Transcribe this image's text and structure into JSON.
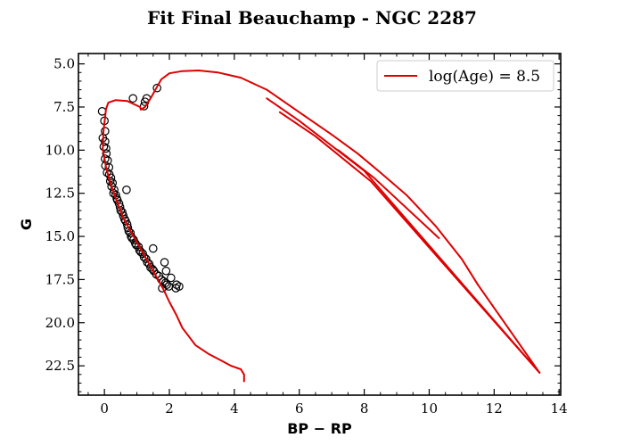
{
  "chart_data": {
    "type": "scatter",
    "title": "Fit Final Beauchamp - NGC 2287",
    "xlabel": "BP − RP",
    "ylabel": "G",
    "xlim": [
      -0.8,
      14.05
    ],
    "ylim": [
      24.2,
      4.4
    ],
    "y_inverted": true,
    "grid": false,
    "legend_position": "top-right",
    "xticks": [
      0,
      2,
      4,
      6,
      8,
      10,
      12,
      14
    ],
    "xtick_labels": [
      "0",
      "2",
      "4",
      "6",
      "8",
      "10",
      "12",
      "14"
    ],
    "yticks": [
      5.0,
      7.5,
      10.0,
      12.5,
      15.0,
      17.5,
      20.0,
      22.5
    ],
    "ytick_labels": [
      "5.0",
      "7.5",
      "10.0",
      "12.5",
      "15.0",
      "17.5",
      "20.0",
      "22.5"
    ],
    "series": [
      {
        "name": "",
        "kind": "scatter",
        "marker": "open-circle",
        "color": "#000000",
        "x": [
          -0.07,
          0.0,
          0.02,
          0.88,
          1.25,
          1.3,
          1.22,
          1.62,
          -0.05,
          0.02,
          -0.02,
          0.05,
          0.06,
          0.02,
          0.1,
          0.03,
          0.14,
          0.08,
          0.15,
          0.2,
          0.18,
          0.25,
          0.22,
          0.3,
          0.28,
          0.35,
          0.38,
          0.4,
          0.45,
          0.48,
          0.5,
          0.55,
          0.58,
          0.62,
          0.65,
          0.7,
          0.72,
          0.75,
          0.8,
          0.82,
          0.85,
          0.9,
          0.95,
          0.98,
          1.05,
          1.08,
          1.12,
          1.18,
          1.22,
          1.28,
          1.32,
          1.38,
          1.42,
          1.48,
          1.52,
          1.6,
          1.68,
          1.75,
          1.82,
          1.88,
          1.92,
          1.98,
          1.85,
          1.9,
          2.05,
          2.22,
          2.3,
          2.2,
          1.78,
          0.68,
          1.5
        ],
        "y": [
          7.75,
          8.3,
          8.9,
          7.0,
          7.2,
          7.0,
          7.45,
          6.4,
          9.3,
          9.5,
          9.8,
          9.9,
          10.2,
          10.5,
          10.6,
          10.9,
          11.0,
          11.3,
          11.4,
          11.6,
          11.8,
          11.9,
          12.1,
          12.3,
          12.5,
          12.6,
          12.8,
          12.9,
          13.1,
          13.3,
          13.5,
          13.6,
          13.8,
          14.0,
          14.1,
          14.3,
          14.5,
          14.7,
          14.8,
          15.0,
          15.1,
          15.2,
          15.4,
          15.5,
          15.6,
          15.8,
          15.9,
          16.0,
          16.2,
          16.3,
          16.5,
          16.6,
          16.8,
          16.9,
          17.0,
          17.2,
          17.3,
          17.5,
          17.6,
          17.7,
          17.8,
          17.9,
          16.5,
          17.0,
          17.4,
          17.8,
          17.9,
          18.0,
          18.0,
          12.3,
          15.7
        ]
      },
      {
        "name": "log(Age) = 8.5",
        "kind": "line",
        "color": "#dd0000",
        "segments": [
          [
            [
              4.3,
              23.4
            ],
            [
              4.3,
              23.0
            ],
            [
              4.2,
              22.7
            ],
            [
              3.9,
              22.5
            ],
            [
              3.6,
              22.2
            ],
            [
              3.2,
              21.8
            ],
            [
              2.8,
              21.3
            ],
            [
              2.6,
              20.8
            ],
            [
              2.4,
              20.3
            ],
            [
              2.2,
              19.5
            ],
            [
              2.0,
              18.8
            ],
            [
              1.8,
              18.0
            ],
            [
              1.5,
              17.0
            ],
            [
              1.2,
              16.0
            ],
            [
              0.9,
              15.0
            ],
            [
              0.6,
              14.0
            ],
            [
              0.35,
              12.8
            ],
            [
              0.18,
              11.9
            ],
            [
              0.05,
              11.0
            ],
            [
              -0.05,
              9.9
            ],
            [
              -0.03,
              8.9
            ],
            [
              0.05,
              7.6
            ],
            [
              0.12,
              7.25
            ],
            [
              0.35,
              7.1
            ],
            [
              0.7,
              7.15
            ],
            [
              1.1,
              7.5
            ],
            [
              1.12,
              7.65
            ],
            [
              1.25,
              7.5
            ],
            [
              1.45,
              6.9
            ],
            [
              1.6,
              6.4
            ],
            [
              1.75,
              5.9
            ],
            [
              2.0,
              5.55
            ],
            [
              2.4,
              5.42
            ],
            [
              2.9,
              5.38
            ],
            [
              3.5,
              5.5
            ],
            [
              4.2,
              5.8
            ],
            [
              5.0,
              6.5
            ],
            [
              6.0,
              7.8
            ],
            [
              7.0,
              9.1
            ],
            [
              7.8,
              10.2
            ],
            [
              8.5,
              11.3
            ],
            [
              9.3,
              12.6
            ],
            [
              10.2,
              14.4
            ],
            [
              11.0,
              16.3
            ],
            [
              11.5,
              17.8
            ]
          ],
          [
            [
              11.5,
              17.8
            ],
            [
              13.4,
              22.9
            ],
            [
              8.0,
              11.2
            ],
            [
              6.0,
              8.3
            ],
            [
              5.0,
              7.0
            ]
          ],
          [
            [
              13.4,
              22.9
            ],
            [
              8.2,
              11.8
            ],
            [
              6.5,
              9.2
            ],
            [
              5.4,
              7.8
            ]
          ],
          [
            [
              10.3,
              15.1
            ],
            [
              8.3,
              11.6
            ],
            [
              7.2,
              10.0
            ]
          ]
        ]
      }
    ]
  }
}
